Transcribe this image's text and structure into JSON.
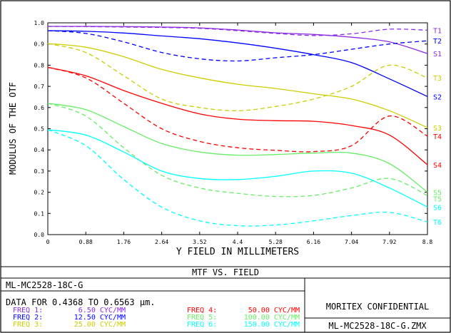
{
  "chart_data": {
    "type": "line",
    "title": "MTF VS. FIELD",
    "xlabel": "Y FIELD IN MILLIMETERS",
    "ylabel": "MODULUS OF THE OTF",
    "xlim": [
      0,
      8.8
    ],
    "ylim": [
      0,
      1.0
    ],
    "xticks": [
      "0",
      "0.88",
      "1.76",
      "2.64",
      "3.52",
      "4.4",
      "5.28",
      "6.16",
      "7.04",
      "7.92",
      "8.8"
    ],
    "yticks": [
      "0.0",
      "0.1",
      "0.2",
      "0.3",
      "0.4",
      "0.5",
      "0.6",
      "0.7",
      "0.8",
      "0.9",
      "1.0"
    ],
    "grid": false,
    "x": [
      0,
      0.88,
      1.76,
      2.64,
      3.52,
      4.4,
      5.28,
      6.16,
      7.04,
      7.92,
      8.8
    ],
    "series": [
      {
        "name": "T1",
        "color": "#8a2be2",
        "dash": true,
        "values": [
          0.983,
          0.982,
          0.98,
          0.978,
          0.974,
          0.963,
          0.95,
          0.94,
          0.948,
          0.97,
          0.965
        ]
      },
      {
        "name": "S1",
        "color": "#8a2be2",
        "dash": false,
        "values": [
          0.983,
          0.983,
          0.982,
          0.98,
          0.976,
          0.966,
          0.953,
          0.945,
          0.932,
          0.91,
          0.855
        ]
      },
      {
        "name": "T2",
        "color": "#0000ff",
        "dash": true,
        "values": [
          0.963,
          0.95,
          0.91,
          0.86,
          0.83,
          0.82,
          0.835,
          0.85,
          0.875,
          0.9,
          0.915
        ]
      },
      {
        "name": "S2",
        "color": "#0000ff",
        "dash": false,
        "values": [
          0.963,
          0.96,
          0.952,
          0.938,
          0.925,
          0.905,
          0.88,
          0.85,
          0.812,
          0.735,
          0.652
        ]
      },
      {
        "name": "T3",
        "color": "#cdcd00",
        "dash": true,
        "values": [
          0.902,
          0.86,
          0.75,
          0.64,
          0.6,
          0.585,
          0.605,
          0.64,
          0.7,
          0.8,
          0.74
        ]
      },
      {
        "name": "S3",
        "color": "#cdcd00",
        "dash": false,
        "values": [
          0.902,
          0.885,
          0.84,
          0.78,
          0.74,
          0.71,
          0.69,
          0.665,
          0.64,
          0.585,
          0.505
        ]
      },
      {
        "name": "T4",
        "color": "#ff0000",
        "dash": true,
        "values": [
          0.79,
          0.74,
          0.62,
          0.5,
          0.44,
          0.41,
          0.398,
          0.392,
          0.42,
          0.56,
          0.465
        ]
      },
      {
        "name": "S4",
        "color": "#ff0000",
        "dash": false,
        "values": [
          0.79,
          0.75,
          0.68,
          0.62,
          0.57,
          0.545,
          0.538,
          0.535,
          0.515,
          0.47,
          0.33
        ]
      },
      {
        "name": "T5",
        "color": "#66ee66",
        "dash": true,
        "values": [
          0.62,
          0.56,
          0.41,
          0.28,
          0.22,
          0.195,
          0.18,
          0.185,
          0.22,
          0.265,
          0.185
        ]
      },
      {
        "name": "S5",
        "color": "#66ee66",
        "dash": false,
        "values": [
          0.62,
          0.59,
          0.51,
          0.43,
          0.39,
          0.375,
          0.378,
          0.385,
          0.385,
          0.335,
          0.2
        ]
      },
      {
        "name": "T6",
        "color": "#00ffff",
        "dash": true,
        "values": [
          0.495,
          0.42,
          0.26,
          0.13,
          0.065,
          0.042,
          0.045,
          0.065,
          0.09,
          0.105,
          0.06
        ]
      },
      {
        "name": "S6",
        "color": "#00ffff",
        "dash": false,
        "values": [
          0.495,
          0.47,
          0.39,
          0.3,
          0.265,
          0.26,
          0.275,
          0.3,
          0.29,
          0.22,
          0.13
        ]
      }
    ],
    "right_labels": [
      {
        "text": "T1",
        "value": 0.965
      },
      {
        "text": "T2",
        "value": 0.915
      },
      {
        "text": "S1",
        "value": 0.855
      },
      {
        "text": "T3",
        "value": 0.74
      },
      {
        "text": "S2",
        "value": 0.652
      },
      {
        "text": "S3",
        "value": 0.505
      },
      {
        "text": "T4",
        "value": 0.465
      },
      {
        "text": "S4",
        "value": 0.33
      },
      {
        "text": "S5",
        "value": 0.2
      },
      {
        "text": "T5",
        "value": 0.17
      },
      {
        "text": "S6",
        "value": 0.13
      },
      {
        "text": "T6",
        "value": 0.06
      }
    ]
  },
  "info": {
    "lens": "ML-MC2528-18C-G",
    "data_line": "DATA FOR 0.4368 TO 0.6563 µm.",
    "freqs": [
      {
        "label": "FREQ 1:",
        "value": "6.50 CYC/MM",
        "color": "#8a2be2"
      },
      {
        "label": "FREQ 2:",
        "value": "12.50 CYC/MM",
        "color": "#0000ff"
      },
      {
        "label": "FREQ 3:",
        "value": "25.00 CYC/MM",
        "color": "#cdcd00"
      },
      {
        "label": "FREQ 4:",
        "value": "50.00 CYC/MM",
        "color": "#ff0000"
      },
      {
        "label": "FREQ 5:",
        "value": "100.00 CYC/MM",
        "color": "#66ee66"
      },
      {
        "label": "FREQ 6:",
        "value": "150.00 CYC/MM",
        "color": "#00ffff"
      }
    ],
    "confidential": "MORITEX CONFIDENTIAL",
    "filename": "ML-MC2528-18C-G.ZMX"
  }
}
